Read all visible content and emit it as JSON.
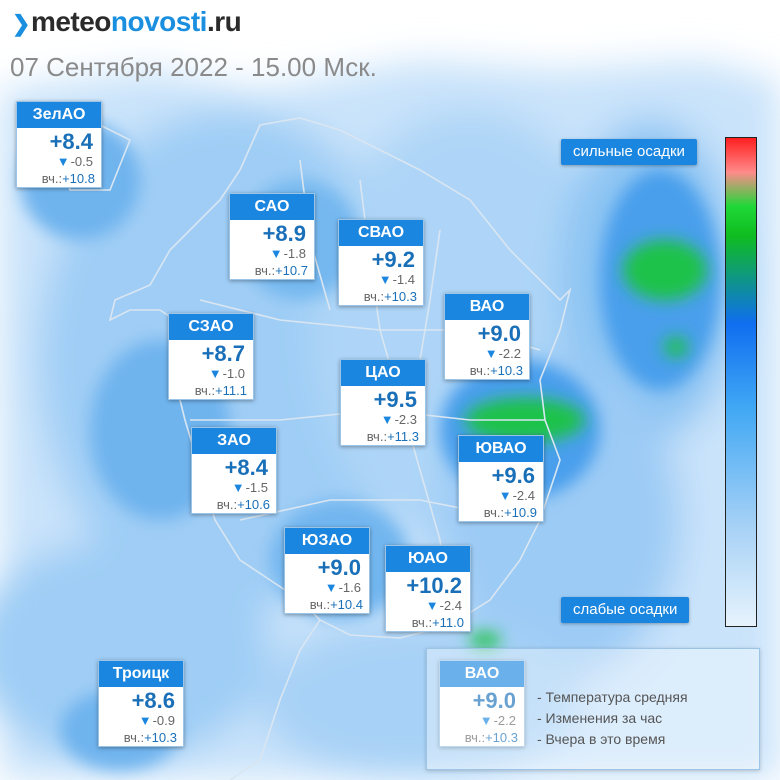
{
  "header": {
    "logo_text": "meteonovosti.ru",
    "logo_part1": "meteo",
    "logo_part2": "novosti",
    "logo_part3": ".ru",
    "date_line": "07 Сентября 2022 - 15.00 Мск."
  },
  "scale": {
    "top_label": "сильные осадки",
    "bottom_label": "слабые осадки",
    "colors": [
      "#ff1f1f",
      "#1fd838",
      "#0f6ef0",
      "#3fa7f4",
      "#e6f3fd"
    ]
  },
  "yesterday_prefix": "вч.:",
  "districts": [
    {
      "name": "ЗелАО",
      "temp": "+8.4",
      "change": "-0.5",
      "yesterday": "+10.8"
    },
    {
      "name": "САО",
      "temp": "+8.9",
      "change": "-1.8",
      "yesterday": "+10.7"
    },
    {
      "name": "СВАО",
      "temp": "+9.2",
      "change": "-1.4",
      "yesterday": "+10.3"
    },
    {
      "name": "ВАО",
      "temp": "+9.0",
      "change": "-2.2",
      "yesterday": "+10.3"
    },
    {
      "name": "СЗАО",
      "temp": "+8.7",
      "change": "-1.0",
      "yesterday": "+11.1"
    },
    {
      "name": "ЦАО",
      "temp": "+9.5",
      "change": "-2.3",
      "yesterday": "+11.3"
    },
    {
      "name": "ЗАО",
      "temp": "+8.4",
      "change": "-1.5",
      "yesterday": "+10.6"
    },
    {
      "name": "ЮВАО",
      "temp": "+9.6",
      "change": "-2.4",
      "yesterday": "+10.9"
    },
    {
      "name": "ЮЗАО",
      "temp": "+9.0",
      "change": "-1.6",
      "yesterday": "+10.4"
    },
    {
      "name": "ЮАО",
      "temp": "+10.2",
      "change": "-2.4",
      "yesterday": "+11.0"
    },
    {
      "name": "Троицк",
      "temp": "+8.6",
      "change": "-0.9",
      "yesterday": "+10.3"
    }
  ],
  "legend": {
    "sample": {
      "name": "ВАО",
      "temp": "+9.0",
      "change": "-2.2",
      "yesterday": "+10.3"
    },
    "lines": [
      "- Температура средняя",
      "- Изменения за час",
      "- Вчера в это время"
    ]
  }
}
